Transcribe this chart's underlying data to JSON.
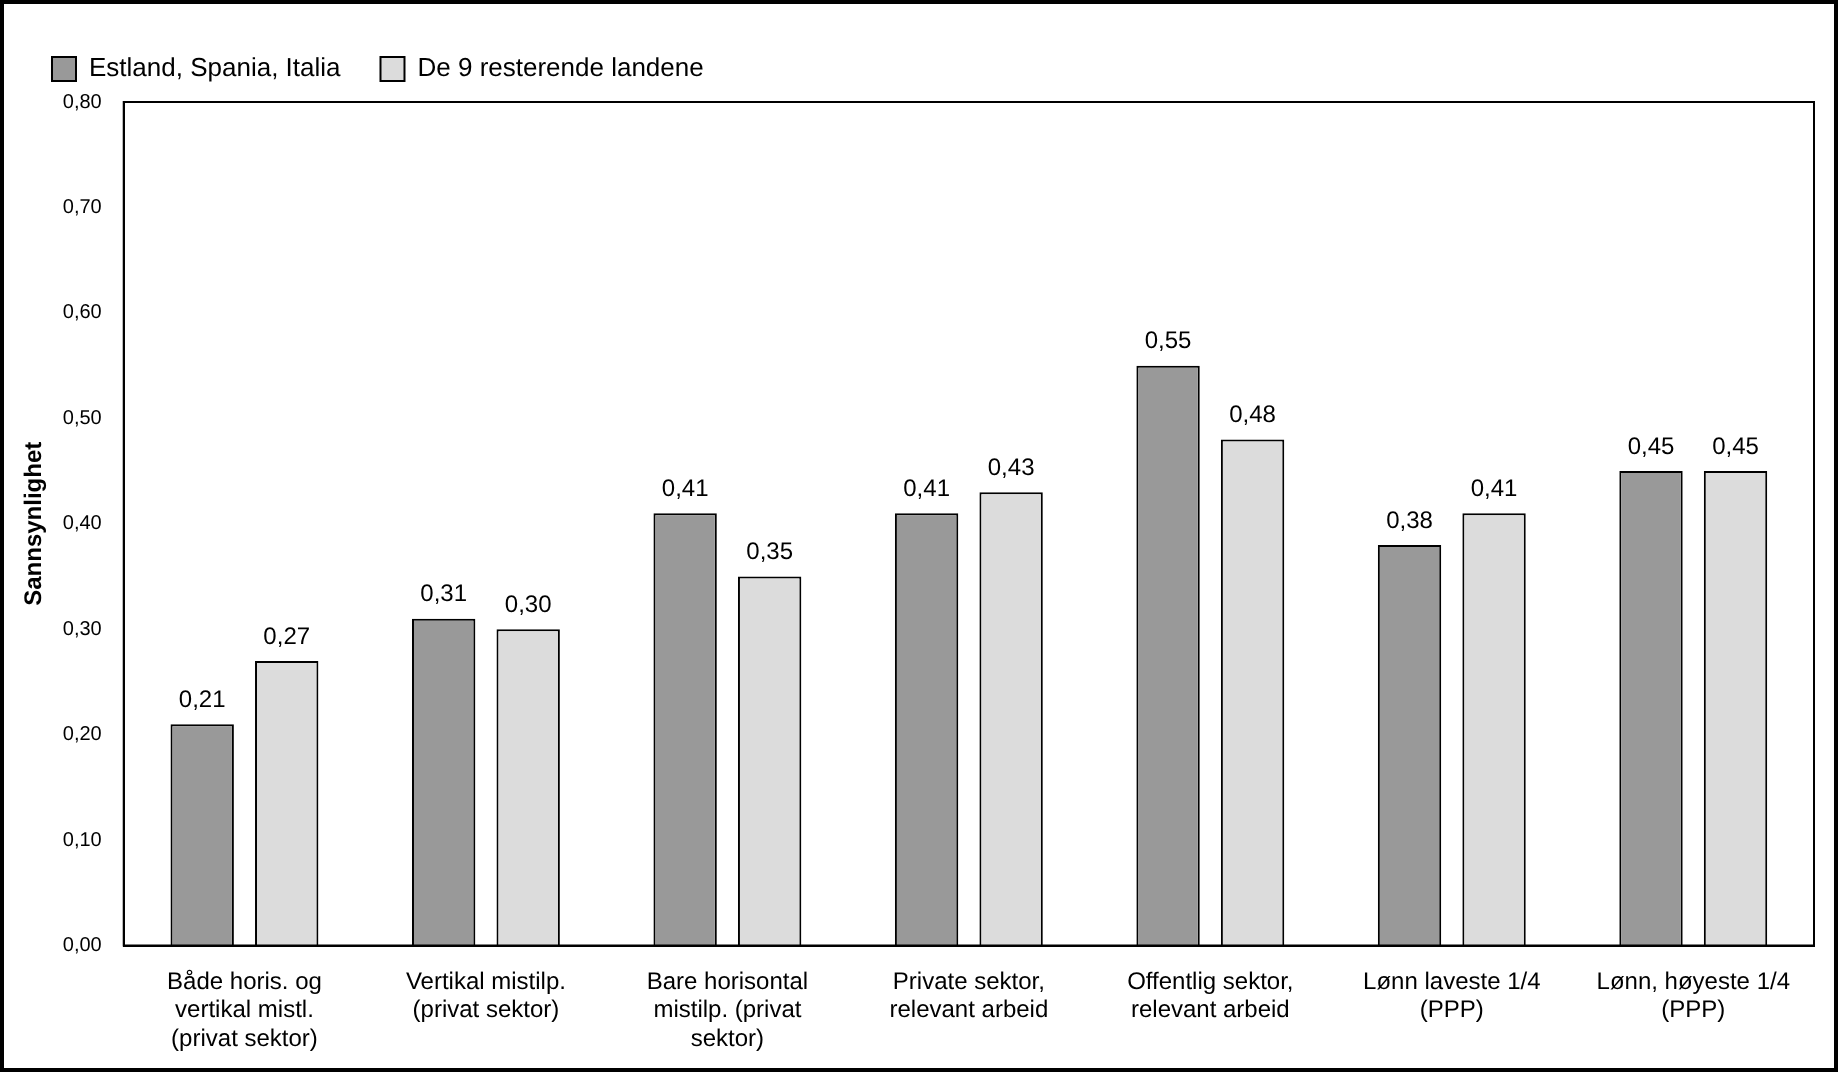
{
  "chart_data": {
    "type": "bar",
    "ylabel": "Sannsynlighet",
    "categories": [
      "Både horis. og vertikal mistl. (privat sektor)",
      "Vertikal mistilp. (privat sektor)",
      "Bare horisontal mistilp. (privat sektor)",
      "Private sektor, relevant arbeid",
      "Offentlig sektor, relevant arbeid",
      "Lønn laveste 1/4 (PPP)",
      "Lønn, høyeste 1/4 (PPP)"
    ],
    "series": [
      {
        "name": "Estland, Spania, Italia",
        "color": "#999999",
        "values": [
          0.21,
          0.31,
          0.41,
          0.41,
          0.55,
          0.38,
          0.45
        ],
        "value_labels": [
          "0,21",
          "0,31",
          "0,41",
          "0,41",
          "0,55",
          "0,38",
          "0,45"
        ]
      },
      {
        "name": "De 9 resterende landene",
        "color": "#dcdcdc",
        "values": [
          0.27,
          0.3,
          0.35,
          0.43,
          0.48,
          0.41,
          0.45
        ],
        "value_labels": [
          "0,27",
          "0,30",
          "0,35",
          "0,43",
          "0,48",
          "0,41",
          "0,45"
        ]
      }
    ],
    "ylim": [
      0,
      0.8
    ],
    "yticks": [
      {
        "value": 0,
        "label": "0,00"
      },
      {
        "value": 0.1,
        "label": "0,10"
      },
      {
        "value": 0.2,
        "label": "0,20"
      },
      {
        "value": 0.3,
        "label": "0,30"
      },
      {
        "value": 0.4,
        "label": "0,40"
      },
      {
        "value": 0.5,
        "label": "0,50"
      },
      {
        "value": 0.6,
        "label": "0,60"
      },
      {
        "value": 0.7,
        "label": "0,70"
      },
      {
        "value": 0.8,
        "label": "0,80"
      }
    ],
    "grid": false,
    "legend": "top"
  }
}
